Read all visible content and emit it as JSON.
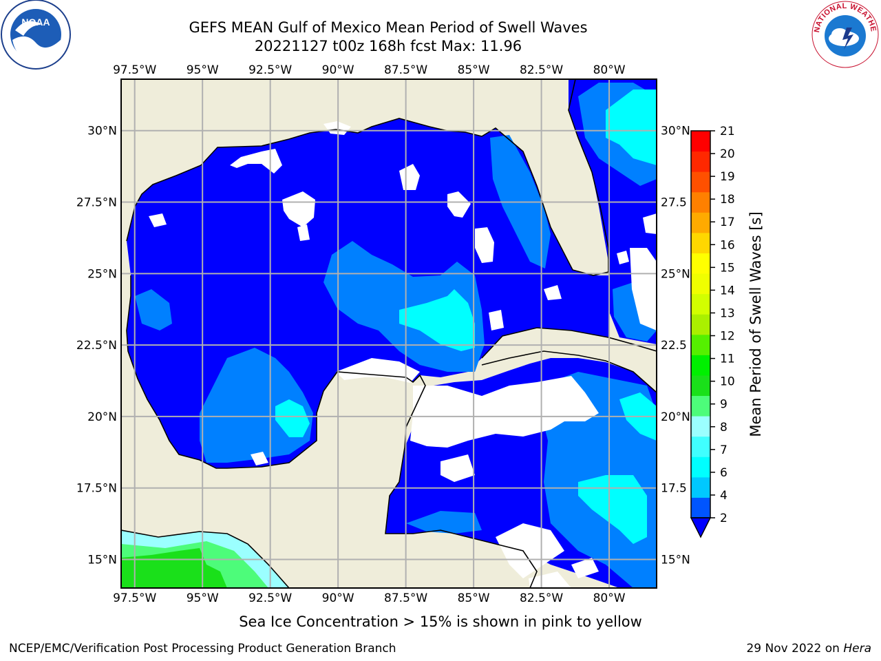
{
  "header": {
    "title": "GEFS MEAN Gulf of Mexico Mean Period of Swell Waves",
    "subtitle": "20221127 t00z 168h fcst   Max: 11.96"
  },
  "logos": {
    "left": {
      "name": "noaa-logo",
      "text": "NOAA"
    },
    "right": {
      "name": "nws-logo",
      "text": "NATIONAL WEATHER SERVICE"
    }
  },
  "map": {
    "extent": {
      "lon_min": -98.0,
      "lon_max": -78.25,
      "lat_min": 14.0,
      "lat_max": 31.8
    },
    "land_color": "#efedda",
    "grid_color": "#b0b0b0",
    "lon_ticks": [
      {
        "value": -97.5,
        "label": "97.5°W"
      },
      {
        "value": -95.0,
        "label": "95°W"
      },
      {
        "value": -92.5,
        "label": "92.5°W"
      },
      {
        "value": -90.0,
        "label": "90°W"
      },
      {
        "value": -87.5,
        "label": "87.5°W"
      },
      {
        "value": -85.0,
        "label": "85°W"
      },
      {
        "value": -82.5,
        "label": "82.5°W"
      },
      {
        "value": -80.0,
        "label": "80°W"
      }
    ],
    "lat_ticks_left": [
      {
        "value": 30.0,
        "label": "30°N"
      },
      {
        "value": 27.5,
        "label": "27.5°N"
      },
      {
        "value": 25.0,
        "label": "25°N"
      },
      {
        "value": 22.5,
        "label": "22.5°N"
      },
      {
        "value": 20.0,
        "label": "20°N"
      },
      {
        "value": 17.5,
        "label": "17.5°N"
      },
      {
        "value": 15.0,
        "label": "15°N"
      }
    ],
    "lat_ticks_right": [
      {
        "value": 30.0,
        "label": "30°N"
      },
      {
        "value": 27.5,
        "label": "27.5"
      },
      {
        "value": 25.0,
        "label": "25°N"
      },
      {
        "value": 22.5,
        "label": "22.5"
      },
      {
        "value": 20.0,
        "label": "20°N"
      },
      {
        "value": 17.5,
        "label": "17.5"
      },
      {
        "value": 15.0,
        "label": "15°N"
      }
    ]
  },
  "colorbar": {
    "label": "Mean Period of Swell Waves [s]",
    "ticks": [
      "2",
      "4",
      "6",
      "7",
      "8",
      "9",
      "10",
      "11",
      "12",
      "13",
      "14",
      "15",
      "16",
      "17",
      "18",
      "19",
      "20",
      "21"
    ],
    "colors": [
      "#0055ff",
      "#00c8ff",
      "#00ffff",
      "#40ffff",
      "#9bffff",
      "#4dfc7a",
      "#1ae01a",
      "#00f000",
      "#55f000",
      "#aaf000",
      "#d2ff00",
      "#f0ff00",
      "#ffff00",
      "#ffd700",
      "#ffaa00",
      "#ff8000",
      "#ff5000",
      "#ff2800",
      "#ff0000"
    ],
    "extend": "min",
    "extend_color": "#0000ff"
  },
  "footer": {
    "note": "Sea Ice Concentration > 15% is shown in pink to yellow",
    "credit_left": "NCEP/EMC/Verification Post Processing Product Generation Branch",
    "credit_date": "29 Nov 2022 on",
    "credit_machine": "Hera"
  }
}
